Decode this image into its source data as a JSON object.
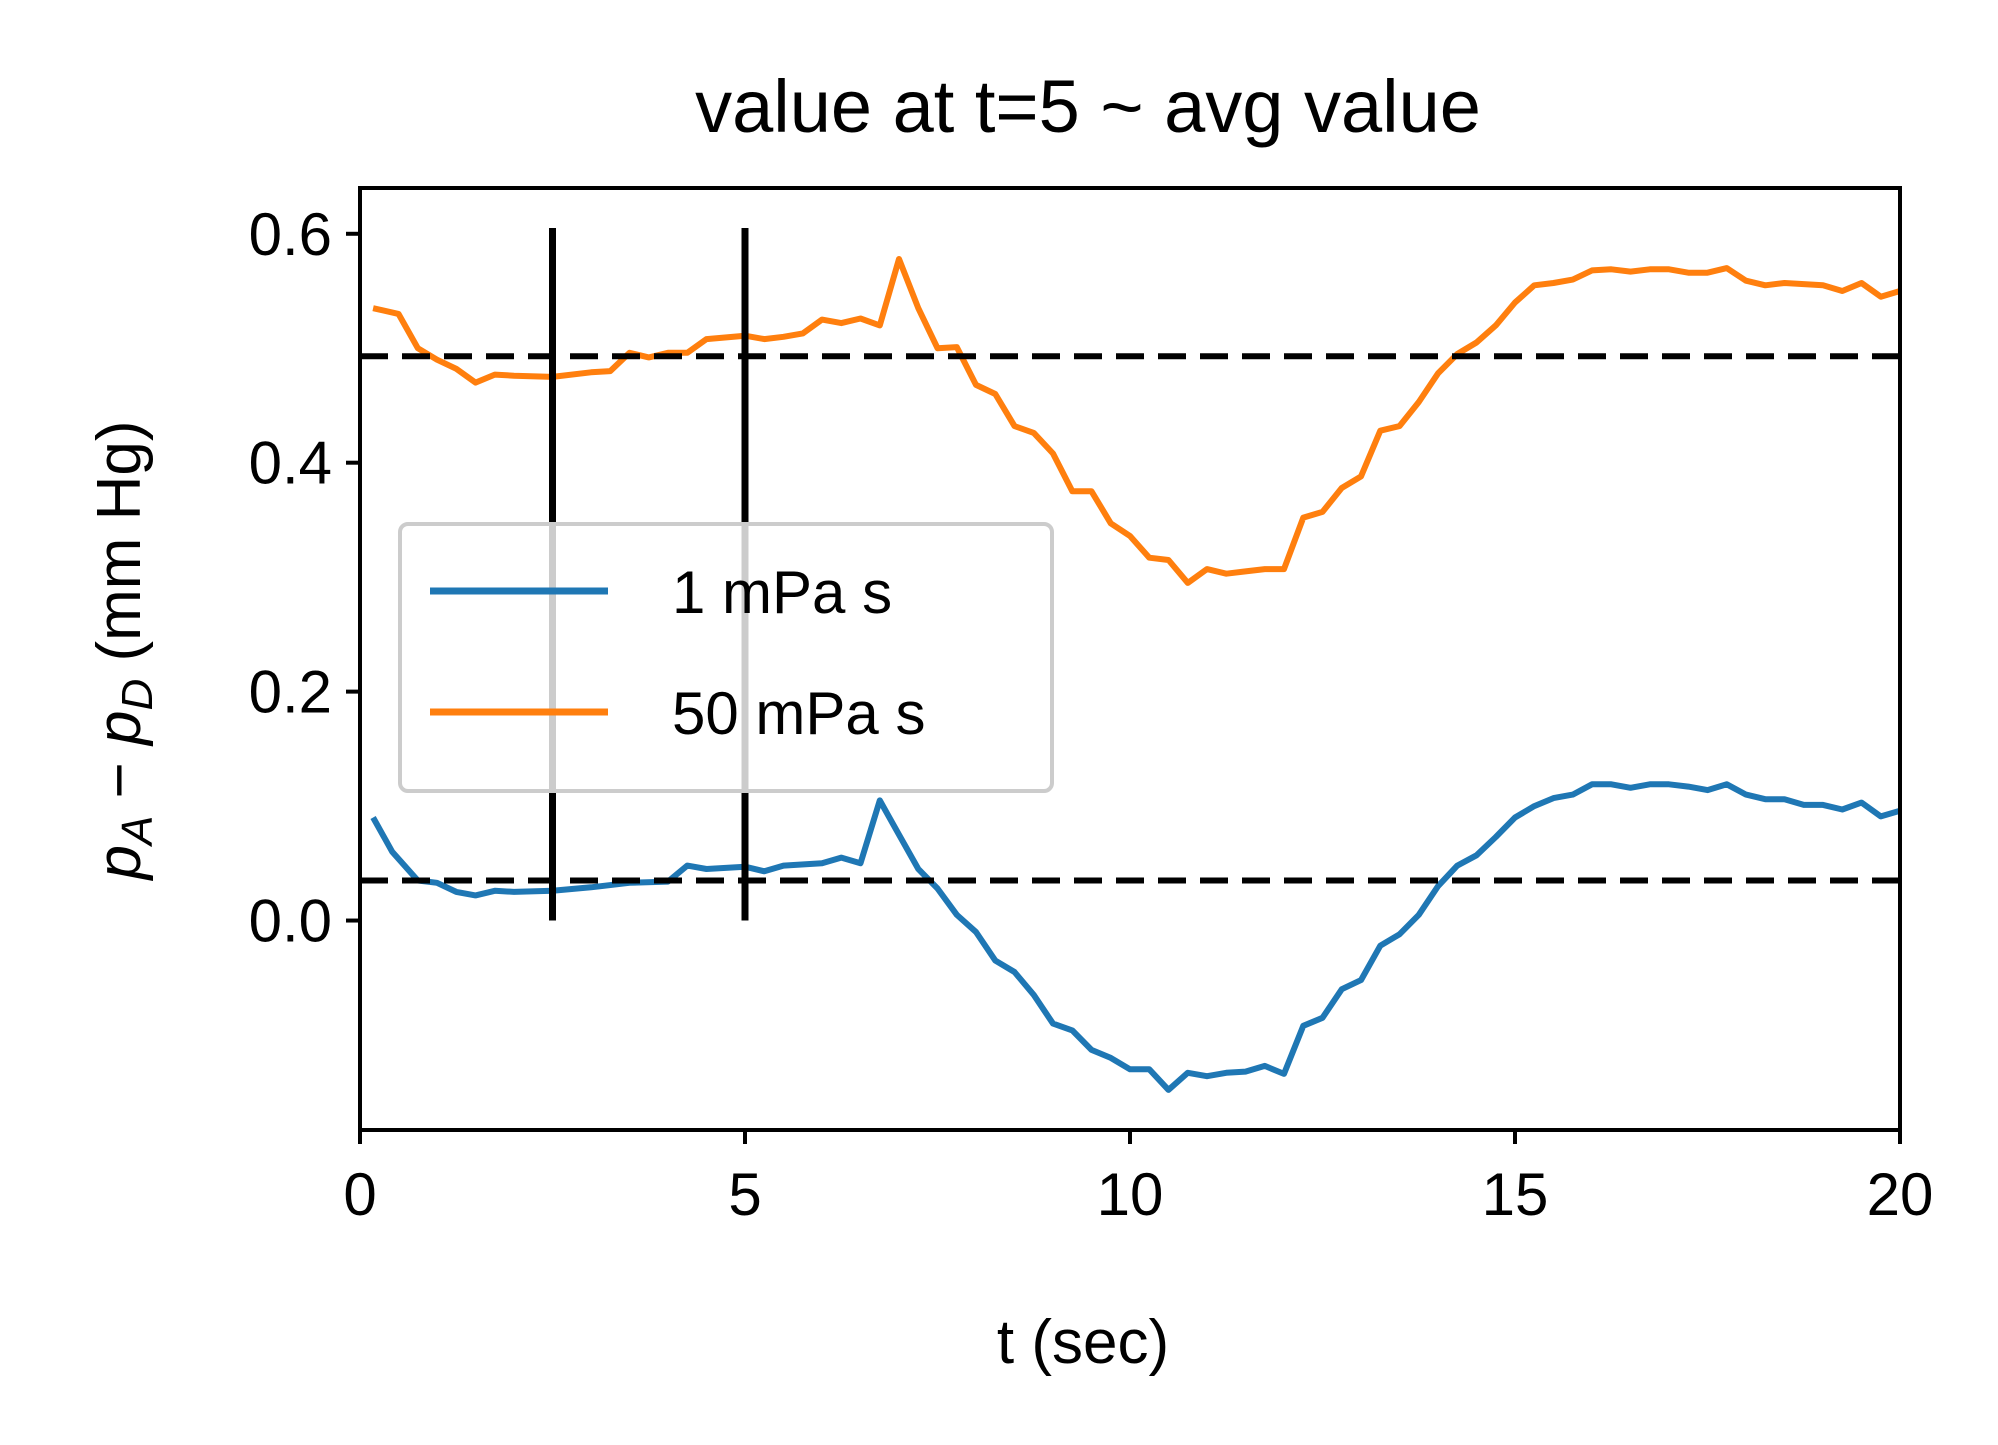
{
  "chart_data": {
    "type": "line",
    "title": "value at t=5 ~ avg value",
    "xlabel": "t (sec)",
    "ylabel": {
      "p": "p",
      "sub_a": "A",
      "minus": " − ",
      "sub_d": "D",
      "unit": " (mm Hg)"
    },
    "xlim": [
      0,
      20
    ],
    "ylim": [
      -0.183,
      0.64
    ],
    "xticks": [
      0,
      5,
      10,
      15,
      20
    ],
    "xtick_labels": [
      "0",
      "5",
      "10",
      "15",
      "20"
    ],
    "yticks": [
      0.0,
      0.2,
      0.4,
      0.6
    ],
    "ytick_labels": [
      "0.0",
      "0.2",
      "0.4",
      "0.6"
    ],
    "grid": false,
    "legend_position": "center-left",
    "vertical_lines": [
      2.5,
      5
    ],
    "vertical_line_range": [
      0.0,
      0.605
    ],
    "horizontal_dashed_lines": [
      0.035,
      0.493
    ],
    "series": [
      {
        "name": "1 mPa s",
        "color": "#1f77b4",
        "x": [
          0.17,
          0.42,
          0.75,
          1.0,
          1.25,
          1.5,
          1.75,
          2.0,
          2.5,
          3.0,
          3.5,
          4.0,
          4.25,
          4.5,
          5.0,
          5.25,
          5.5,
          6.0,
          6.25,
          6.5,
          6.75,
          7.0,
          7.25,
          7.5,
          7.75,
          8.0,
          8.25,
          8.5,
          8.75,
          9.0,
          9.25,
          9.5,
          9.75,
          10.0,
          10.25,
          10.5,
          10.75,
          11.0,
          11.25,
          11.5,
          11.75,
          12.0,
          12.25,
          12.5,
          12.75,
          13.0,
          13.25,
          13.5,
          13.75,
          14.0,
          14.25,
          14.5,
          14.75,
          15.0,
          15.25,
          15.5,
          15.75,
          16.0,
          16.25,
          16.5,
          16.75,
          17.0,
          17.25,
          17.5,
          17.75,
          18.0,
          18.25,
          18.5,
          18.75,
          19.0,
          19.25,
          19.5,
          19.75,
          20.0
        ],
        "y": [
          0.09,
          0.06,
          0.035,
          0.033,
          0.025,
          0.022,
          0.026,
          0.025,
          0.026,
          0.029,
          0.033,
          0.034,
          0.048,
          0.045,
          0.047,
          0.043,
          0.048,
          0.05,
          0.055,
          0.05,
          0.105,
          0.075,
          0.045,
          0.028,
          0.005,
          -0.01,
          -0.035,
          -0.045,
          -0.065,
          -0.09,
          -0.096,
          -0.113,
          -0.12,
          -0.13,
          -0.13,
          -0.148,
          -0.133,
          -0.136,
          -0.133,
          -0.132,
          -0.127,
          -0.134,
          -0.092,
          -0.085,
          -0.06,
          -0.052,
          -0.022,
          -0.012,
          0.005,
          0.03,
          0.048,
          0.057,
          0.073,
          0.09,
          0.1,
          0.107,
          0.11,
          0.119,
          0.119,
          0.116,
          0.119,
          0.119,
          0.117,
          0.114,
          0.119,
          0.11,
          0.106,
          0.106,
          0.101,
          0.101,
          0.097,
          0.103,
          0.091,
          0.096
        ]
      },
      {
        "name": "50 mPa s",
        "color": "#ff7f0e",
        "x": [
          0.17,
          0.5,
          0.75,
          1.0,
          1.25,
          1.5,
          1.75,
          2.0,
          2.5,
          3.0,
          3.25,
          3.5,
          3.75,
          4.0,
          4.25,
          4.5,
          5.0,
          5.25,
          5.5,
          5.75,
          6.0,
          6.25,
          6.5,
          6.75,
          7.0,
          7.25,
          7.5,
          7.75,
          8.0,
          8.25,
          8.5,
          8.75,
          9.0,
          9.25,
          9.5,
          9.75,
          10.0,
          10.25,
          10.5,
          10.75,
          11.0,
          11.25,
          11.5,
          11.75,
          12.0,
          12.25,
          12.5,
          12.75,
          13.0,
          13.25,
          13.5,
          13.75,
          14.0,
          14.25,
          14.5,
          14.75,
          15.0,
          15.25,
          15.5,
          15.75,
          16.0,
          16.25,
          16.5,
          16.75,
          17.0,
          17.25,
          17.5,
          17.75,
          18.0,
          18.25,
          18.5,
          18.75,
          19.0,
          19.25,
          19.5,
          19.75,
          20.0
        ],
        "y": [
          0.535,
          0.53,
          0.5,
          0.49,
          0.482,
          0.47,
          0.477,
          0.476,
          0.475,
          0.479,
          0.48,
          0.496,
          0.492,
          0.496,
          0.496,
          0.508,
          0.511,
          0.508,
          0.51,
          0.513,
          0.525,
          0.522,
          0.526,
          0.52,
          0.578,
          0.535,
          0.5,
          0.501,
          0.468,
          0.46,
          0.432,
          0.426,
          0.408,
          0.375,
          0.375,
          0.347,
          0.336,
          0.317,
          0.315,
          0.295,
          0.307,
          0.303,
          0.305,
          0.307,
          0.307,
          0.352,
          0.357,
          0.378,
          0.388,
          0.428,
          0.432,
          0.453,
          0.478,
          0.495,
          0.505,
          0.52,
          0.54,
          0.555,
          0.557,
          0.56,
          0.568,
          0.569,
          0.567,
          0.569,
          0.569,
          0.566,
          0.566,
          0.57,
          0.559,
          0.555,
          0.557,
          0.556,
          0.555,
          0.55,
          0.557,
          0.545,
          0.55
        ]
      }
    ]
  }
}
